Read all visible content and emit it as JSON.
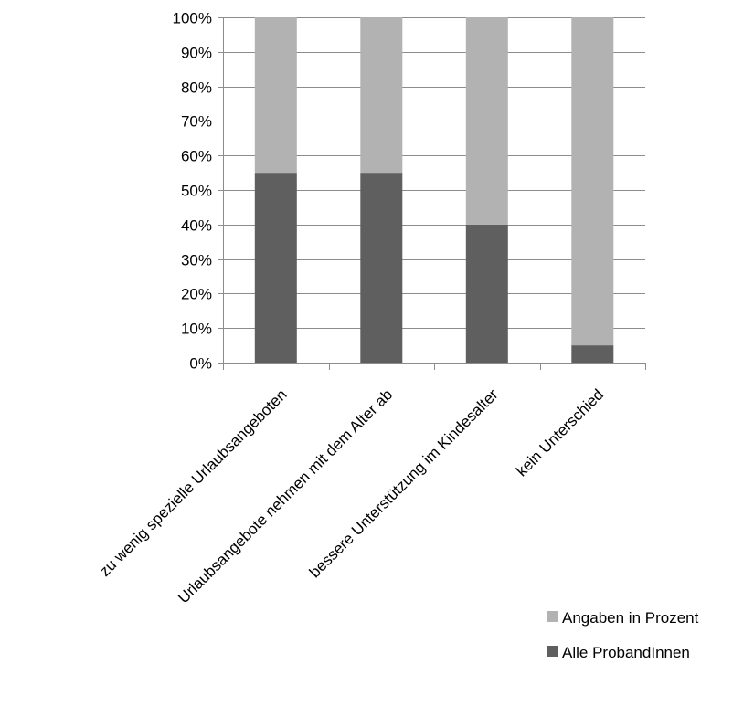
{
  "chart_data": {
    "type": "bar",
    "stacked": true,
    "percent_stacked": true,
    "categories": [
      "zu wenig spezielle Urlaubsangeboten",
      "Urlaubsangebote nehmen mit dem Alter ab",
      "bessere Unterstützung im Kindesalter",
      "kein Unterschied"
    ],
    "series": [
      {
        "name": "Alle ProbandInnen",
        "values": [
          55,
          55,
          40,
          5
        ],
        "color": "#5f5f5f"
      },
      {
        "name": "Angaben in Prozent",
        "values": [
          45,
          45,
          60,
          95
        ],
        "color": "#b2b2b2"
      }
    ],
    "yticks": [
      "0%",
      "10%",
      "20%",
      "30%",
      "40%",
      "50%",
      "60%",
      "70%",
      "80%",
      "90%",
      "100%"
    ],
    "ylim": [
      0,
      100
    ],
    "grid": true,
    "legend_position": "bottom-right",
    "legend_order": [
      "Angaben in Prozent",
      "Alle ProbandInnen"
    ],
    "title": "",
    "xlabel": "",
    "ylabel": ""
  }
}
